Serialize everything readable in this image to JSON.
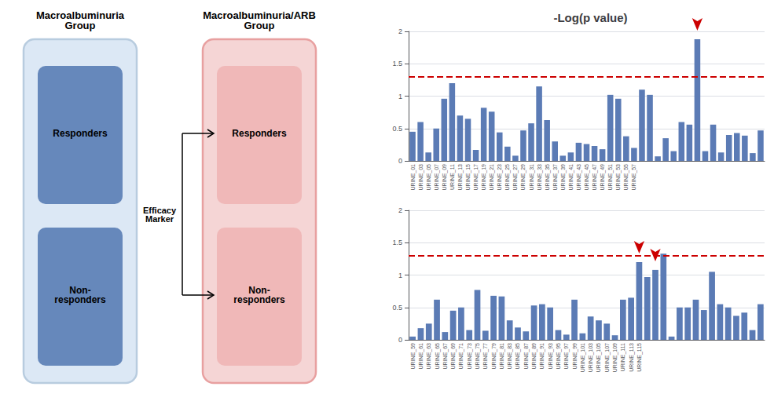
{
  "chart_data": [
    {
      "type": "bar",
      "title": "-Log(p value)",
      "categories": [
        "URINE_01",
        "URINE_03",
        "URINE_05",
        "URINE_07",
        "URINE_09",
        "URINE_11",
        "URINE_13",
        "URINE_15",
        "URINE_17",
        "URINE_19",
        "URINE_21",
        "URINE_23",
        "URINE_25",
        "URINE_27",
        "URINE_29",
        "URINE_31",
        "URINE_33",
        "URINE_35",
        "URINE_37",
        "URINE_39",
        "URINE_41",
        "URINE_43",
        "URINE_45",
        "URINE_47",
        "URINE_49",
        "URINE_51",
        "URINE_53",
        "URINE_55",
        "URINE_57",
        null,
        null,
        null,
        null,
        null,
        null,
        null,
        null,
        null,
        null,
        null,
        null,
        null,
        null,
        null,
        null
      ],
      "values": [
        0.45,
        0.6,
        0.13,
        0.5,
        0.96,
        1.2,
        0.7,
        0.65,
        0.17,
        0.82,
        0.76,
        0.44,
        0.22,
        0.08,
        0.47,
        0.58,
        1.15,
        0.63,
        0.3,
        0.08,
        0.13,
        0.28,
        0.26,
        0.23,
        0.18,
        1.02,
        0.96,
        0.38,
        0.2,
        1.1,
        1.02,
        0.07,
        0.35,
        0.15,
        0.6,
        0.56,
        1.88,
        0.15,
        0.56,
        0.13,
        0.4,
        0.43,
        0.39,
        0.12,
        0.47
      ],
      "color": "#5b7bb5",
      "ylim": [
        0,
        2.0
      ],
      "yticks": [
        0,
        0.5,
        1,
        1.5,
        2
      ],
      "grid": true,
      "threshold": {
        "value": 1.3,
        "color": "#cc0000",
        "line_style": "dashed"
      },
      "arrows": {
        "indices": [
          36
        ],
        "color": "#cc0000"
      }
    },
    {
      "type": "bar",
      "categories": [
        "URINE_59",
        "URINE_61",
        "URINE_63",
        "URINE_65",
        "URINE_67",
        "URINE_69",
        "URINE_71",
        "URINE_73",
        "URINE_75",
        "URINE_77",
        "URINE_79",
        "URINE_81",
        "URINE_83",
        "URINE_85",
        "URINE_87",
        "URINE_89",
        "URINE_91",
        "URINE_93",
        "URINE_95",
        "URINE_97",
        "URINE_99",
        "URINE_101",
        "URINE_103",
        "URINE_105",
        "URINE_107",
        "URINE_109",
        "URINE_111",
        "URINE_113",
        "URINE_115",
        null,
        null,
        null,
        null,
        null,
        null,
        null,
        null,
        null,
        null,
        null,
        null,
        null,
        null,
        null
      ],
      "values": [
        0.05,
        0.18,
        0.25,
        0.62,
        0.12,
        0.45,
        0.5,
        0.15,
        0.77,
        0.14,
        0.68,
        0.67,
        0.3,
        0.19,
        0.13,
        0.53,
        0.55,
        0.5,
        0.15,
        0.08,
        0.62,
        0.1,
        0.36,
        0.3,
        0.25,
        0.07,
        0.62,
        0.65,
        1.2,
        0.97,
        1.08,
        1.33,
        0.05,
        0.5,
        0.5,
        0.62,
        0.46,
        1.05,
        0.55,
        0.5,
        0.37,
        0.42,
        0.15,
        0.55
      ],
      "color": "#5b7bb5",
      "ylim": [
        0,
        2.0
      ],
      "yticks": [
        0,
        0.5,
        1,
        1.5,
        2
      ],
      "grid": true,
      "threshold": {
        "value": 1.3,
        "color": "#cc0000",
        "line_style": "dashed"
      },
      "arrows": {
        "indices": [
          28,
          30
        ],
        "color": "#cc0000"
      }
    }
  ],
  "diagram": {
    "panels": [
      {
        "title": "Macroalbuminuria\nGroup",
        "labels": [
          "Responders",
          "Non-\nresponders"
        ],
        "color": "#6688bb",
        "outer_color": "#b8ccdf",
        "background": "#dce8f5"
      },
      {
        "title": "Macroalbuminuria/ARB\nGroup",
        "labels": [
          "Responders",
          "Non-\nresponders"
        ],
        "color": "#f0b8b8",
        "outer_color": "#e8a0a0",
        "background": "#f5d5d5"
      }
    ],
    "arrow_label": "Efficacy\nMarker"
  }
}
